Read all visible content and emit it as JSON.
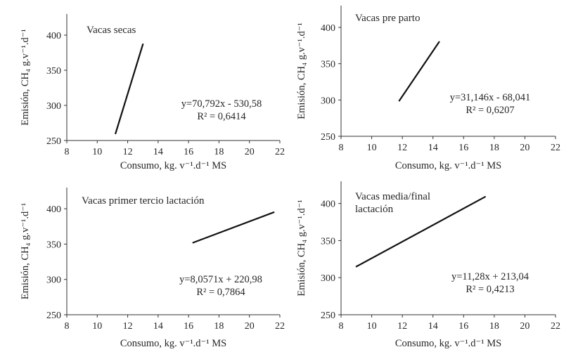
{
  "chart_data": [
    {
      "type": "line",
      "title": "Vacas secas",
      "xlabel": "Consumo, kg. v⁻¹.d⁻¹ MS",
      "ylabel": "Emisión, CH₄ g.v⁻¹.d⁻¹",
      "xlim": [
        8,
        22
      ],
      "ylim": [
        250,
        430
      ],
      "xticks": [
        "8",
        "10",
        "12",
        "14",
        "16",
        "18",
        "20",
        "22"
      ],
      "yticks": [
        "250",
        "300",
        "350",
        "400"
      ],
      "series": [
        {
          "x": [
            11.2,
            13.0
          ],
          "y": [
            260,
            387
          ]
        }
      ],
      "equation": "y=70,792x - 530,58",
      "r2": "R² = 0,6414",
      "grid": false
    },
    {
      "type": "line",
      "title": "Vacas pre parto",
      "xlabel": "Consumo, kg. v⁻¹.d⁻¹ MS",
      "ylabel": "Emisión, CH₄ g.v⁻¹.d⁻¹",
      "xlim": [
        8,
        22
      ],
      "ylim": [
        250,
        430
      ],
      "xticks": [
        "8",
        "10",
        "12",
        "14",
        "16",
        "18",
        "20",
        "22"
      ],
      "yticks": [
        "250",
        "300",
        "350",
        "400"
      ],
      "series": [
        {
          "x": [
            11.8,
            14.4
          ],
          "y": [
            299,
            380
          ]
        }
      ],
      "equation": "y=31,146x - 68,041",
      "r2": "R² = 0,6207",
      "grid": false
    },
    {
      "type": "line",
      "title": "Vacas primer tercio lactación",
      "xlabel": "Consumo, kg. v⁻¹.d⁻¹ MS",
      "ylabel": "Emisión, CH₄ g.v⁻¹.d⁻¹",
      "xlim": [
        8,
        22
      ],
      "ylim": [
        250,
        430
      ],
      "xticks": [
        "8",
        "10",
        "12",
        "14",
        "16",
        "18",
        "20",
        "22"
      ],
      "yticks": [
        "250",
        "300",
        "350",
        "400"
      ],
      "series": [
        {
          "x": [
            16.3,
            21.6
          ],
          "y": [
            352,
            395
          ]
        }
      ],
      "equation": "y=8,0571x + 220,98",
      "r2": "R² = 0,7864",
      "grid": false
    },
    {
      "type": "line",
      "title": "Vacas media/final\nlactación",
      "xlabel": "Consumo, kg. v⁻¹.d⁻¹ MS",
      "ylabel": "Emisión, CH₄ g.v⁻¹.d⁻¹",
      "xlim": [
        8,
        22
      ],
      "ylim": [
        250,
        430
      ],
      "xticks": [
        "8",
        "10",
        "12",
        "14",
        "16",
        "18",
        "20",
        "22"
      ],
      "yticks": [
        "250",
        "300",
        "350",
        "400"
      ],
      "series": [
        {
          "x": [
            9.0,
            17.4
          ],
          "y": [
            315,
            409
          ]
        }
      ],
      "equation": "y=11,28x + 213,04",
      "r2": "R² = 0,4213",
      "grid": false
    }
  ],
  "colors": {
    "line": "#111111",
    "axis": "#333333",
    "text": "#262626"
  }
}
